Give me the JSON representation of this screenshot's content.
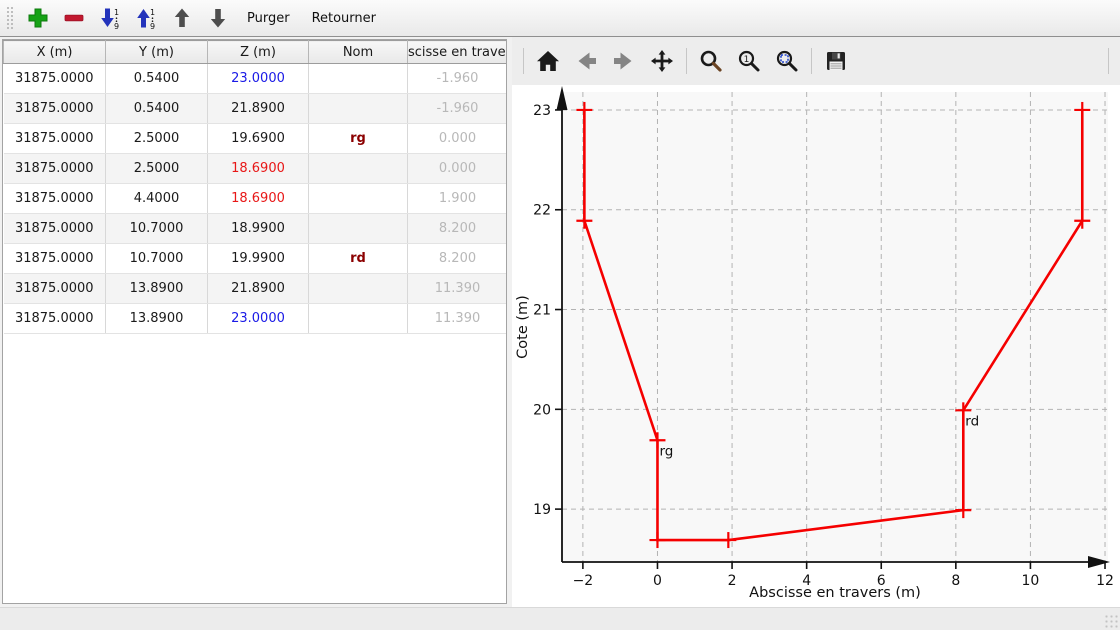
{
  "toolbar": {
    "purger_label": "Purger",
    "retourner_label": "Retourner",
    "icons": [
      {
        "name": "add-row-icon",
        "color": "#16a216"
      },
      {
        "name": "remove-row-icon",
        "color": "#c2182f"
      },
      {
        "name": "sort-descending-1-9-icon",
        "color": "#2333bb"
      },
      {
        "name": "sort-ascending-1-9-icon",
        "color": "#2333bb"
      },
      {
        "name": "move-row-up-icon",
        "color": "#4d4d4d"
      },
      {
        "name": "move-row-down-icon",
        "color": "#4d4d4d"
      }
    ]
  },
  "plot_toolbar": {
    "icons": [
      "home-icon",
      "back-arrow-icon",
      "forward-arrow-icon",
      "pan-icon",
      "zoom-rect-icon",
      "zoom-one-icon",
      "zoom-fit-icon",
      "save-icon"
    ]
  },
  "table": {
    "columns": [
      "X (m)",
      "Y (m)",
      "Z (m)",
      "Nom",
      "scisse en travers"
    ],
    "rows": [
      {
        "x": "31875.0000",
        "y": "0.5400",
        "z": "23.0000",
        "z_state": "z-blue",
        "nom": "",
        "absc": "-1.960"
      },
      {
        "x": "31875.0000",
        "y": "0.5400",
        "z": "21.8900",
        "z_state": "",
        "nom": "",
        "absc": "-1.960"
      },
      {
        "x": "31875.0000",
        "y": "2.5000",
        "z": "19.6900",
        "z_state": "",
        "nom": "rg",
        "absc": "0.000"
      },
      {
        "x": "31875.0000",
        "y": "2.5000",
        "z": "18.6900",
        "z_state": "z-red",
        "nom": "",
        "absc": "0.000"
      },
      {
        "x": "31875.0000",
        "y": "4.4000",
        "z": "18.6900",
        "z_state": "z-red",
        "nom": "",
        "absc": "1.900"
      },
      {
        "x": "31875.0000",
        "y": "10.7000",
        "z": "18.9900",
        "z_state": "",
        "nom": "",
        "absc": "8.200"
      },
      {
        "x": "31875.0000",
        "y": "10.7000",
        "z": "19.9900",
        "z_state": "",
        "nom": "rd",
        "absc": "8.200"
      },
      {
        "x": "31875.0000",
        "y": "13.8900",
        "z": "21.8900",
        "z_state": "",
        "nom": "",
        "absc": "11.390"
      },
      {
        "x": "31875.0000",
        "y": "13.8900",
        "z": "23.0000",
        "z_state": "z-blue",
        "nom": "",
        "absc": "11.390"
      }
    ]
  },
  "colors": {
    "z_blue": "#1a1ae6",
    "z_red": "#e81717",
    "nom_red": "#8b0000",
    "absc_gray": "#b8b8b8",
    "grid_gray": "#b3b3b3",
    "axis_black": "#111111"
  },
  "chart_data": {
    "type": "line",
    "title": "",
    "xlabel": "Abscisse en travers (m)",
    "ylabel": "Cote (m)",
    "xlim": [
      -2.56,
      12.08
    ],
    "ylim": [
      18.47,
      23.18
    ],
    "xticks": [
      -2,
      0,
      2,
      4,
      6,
      8,
      10,
      12
    ],
    "yticks": [
      19,
      20,
      21,
      22,
      23
    ],
    "grid": "dashed",
    "legend": "none",
    "line_color": "#f50000",
    "marker": "+",
    "axes_bg": "#f8f8f8",
    "points": [
      {
        "x": -1.96,
        "y": 23.0
      },
      {
        "x": -1.96,
        "y": 21.89
      },
      {
        "x": 0.0,
        "y": 19.69,
        "label": "rg"
      },
      {
        "x": 0.0,
        "y": 18.69
      },
      {
        "x": 1.9,
        "y": 18.69
      },
      {
        "x": 8.2,
        "y": 18.99
      },
      {
        "x": 8.2,
        "y": 19.99,
        "label": "rd"
      },
      {
        "x": 11.39,
        "y": 21.89
      },
      {
        "x": 11.39,
        "y": 23.0
      }
    ]
  }
}
